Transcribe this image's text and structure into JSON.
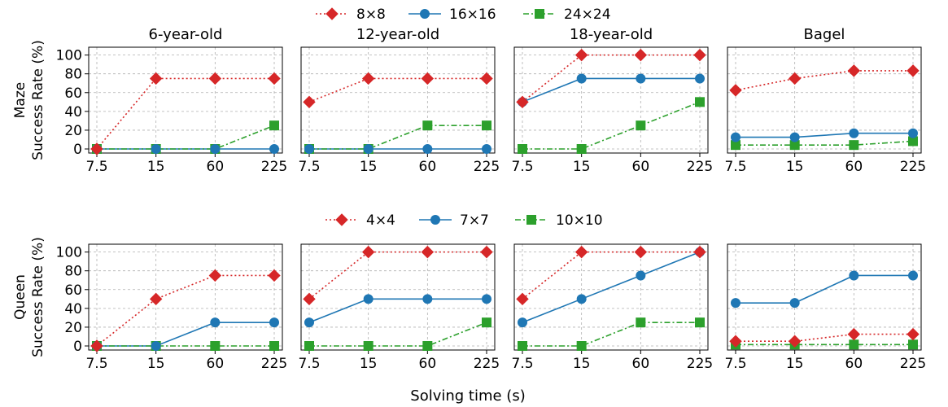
{
  "figure": {
    "xlabel": "Solving time (s)",
    "x_ticks": [
      "7.5",
      "15",
      "60",
      "225"
    ],
    "y_ticks": [
      0,
      20,
      40,
      60,
      80,
      100
    ],
    "colors": {
      "red": "#d62728",
      "blue": "#1f77b4",
      "green": "#2ca02c"
    }
  },
  "rows": [
    {
      "ylabel_line1": "Maze",
      "ylabel_line2": "Success Rate (%)",
      "legend": [
        "8×8",
        "16×16",
        "24×24"
      ]
    },
    {
      "ylabel_line1": "Queen",
      "ylabel_line2": "Success Rate (%)",
      "legend": [
        "4×4",
        "7×7",
        "10×10"
      ]
    }
  ],
  "panel_titles": [
    "6-year-old",
    "12-year-old",
    "18-year-old",
    "Bagel"
  ],
  "chart_data": [
    {
      "type": "line",
      "row": "Maze",
      "title": "6-year-old",
      "categories": [
        "7.5",
        "15",
        "60",
        "225"
      ],
      "ylim": [
        0,
        100
      ],
      "grid": true,
      "series": [
        {
          "name": "8×8",
          "values": [
            0,
            75,
            75,
            75
          ]
        },
        {
          "name": "16×16",
          "values": [
            0,
            0,
            0,
            0
          ]
        },
        {
          "name": "24×24",
          "values": [
            0,
            0,
            0,
            25
          ]
        }
      ]
    },
    {
      "type": "line",
      "row": "Maze",
      "title": "12-year-old",
      "categories": [
        "7.5",
        "15",
        "60",
        "225"
      ],
      "ylim": [
        0,
        100
      ],
      "grid": true,
      "series": [
        {
          "name": "8×8",
          "values": [
            50,
            75,
            75,
            75
          ]
        },
        {
          "name": "16×16",
          "values": [
            0,
            0,
            0,
            0
          ]
        },
        {
          "name": "24×24",
          "values": [
            0,
            0,
            25,
            25
          ]
        }
      ]
    },
    {
      "type": "line",
      "row": "Maze",
      "title": "18-year-old",
      "categories": [
        "7.5",
        "15",
        "60",
        "225"
      ],
      "ylim": [
        0,
        100
      ],
      "grid": true,
      "series": [
        {
          "name": "8×8",
          "values": [
            50,
            100,
            100,
            100
          ]
        },
        {
          "name": "16×16",
          "values": [
            50,
            75,
            75,
            75
          ]
        },
        {
          "name": "24×24",
          "values": [
            0,
            0,
            25,
            50
          ]
        }
      ]
    },
    {
      "type": "line",
      "row": "Maze",
      "title": "Bagel",
      "categories": [
        "7.5",
        "15",
        "60",
        "225"
      ],
      "ylim": [
        0,
        100
      ],
      "grid": true,
      "series": [
        {
          "name": "8×8",
          "values": [
            62.5,
            75,
            83.3,
            83.3
          ]
        },
        {
          "name": "16×16",
          "values": [
            12.5,
            12.5,
            16.7,
            16.7
          ]
        },
        {
          "name": "24×24",
          "values": [
            4.2,
            4.2,
            4.2,
            8.3
          ]
        }
      ]
    },
    {
      "type": "line",
      "row": "Queen",
      "title": "",
      "categories": [
        "7.5",
        "15",
        "60",
        "225"
      ],
      "ylim": [
        0,
        100
      ],
      "grid": true,
      "series": [
        {
          "name": "4×4",
          "values": [
            0,
            50,
            75,
            75
          ]
        },
        {
          "name": "7×7",
          "values": [
            0,
            0,
            25,
            25
          ]
        },
        {
          "name": "10×10",
          "values": [
            0,
            0,
            0,
            0
          ]
        }
      ]
    },
    {
      "type": "line",
      "row": "Queen",
      "title": "",
      "categories": [
        "7.5",
        "15",
        "60",
        "225"
      ],
      "ylim": [
        0,
        100
      ],
      "grid": true,
      "series": [
        {
          "name": "4×4",
          "values": [
            50,
            100,
            100,
            100
          ]
        },
        {
          "name": "7×7",
          "values": [
            25,
            50,
            50,
            50
          ]
        },
        {
          "name": "10×10",
          "values": [
            0,
            0,
            0,
            25
          ]
        }
      ]
    },
    {
      "type": "line",
      "row": "Queen",
      "title": "",
      "categories": [
        "7.5",
        "15",
        "60",
        "225"
      ],
      "ylim": [
        0,
        100
      ],
      "grid": true,
      "series": [
        {
          "name": "4×4",
          "values": [
            50,
            100,
            100,
            100
          ]
        },
        {
          "name": "7×7",
          "values": [
            25,
            50,
            75,
            100
          ]
        },
        {
          "name": "10×10",
          "values": [
            0,
            0,
            25,
            25
          ]
        }
      ]
    },
    {
      "type": "line",
      "row": "Queen",
      "title": "",
      "categories": [
        "7.5",
        "15",
        "60",
        "225"
      ],
      "ylim": [
        0,
        100
      ],
      "grid": true,
      "series": [
        {
          "name": "4×4",
          "values": [
            5,
            5,
            12.5,
            12.5
          ]
        },
        {
          "name": "7×7",
          "values": [
            45.8,
            45.8,
            75,
            75
          ]
        },
        {
          "name": "10×10",
          "values": [
            1.5,
            1.5,
            1.5,
            1.5
          ]
        }
      ]
    }
  ]
}
